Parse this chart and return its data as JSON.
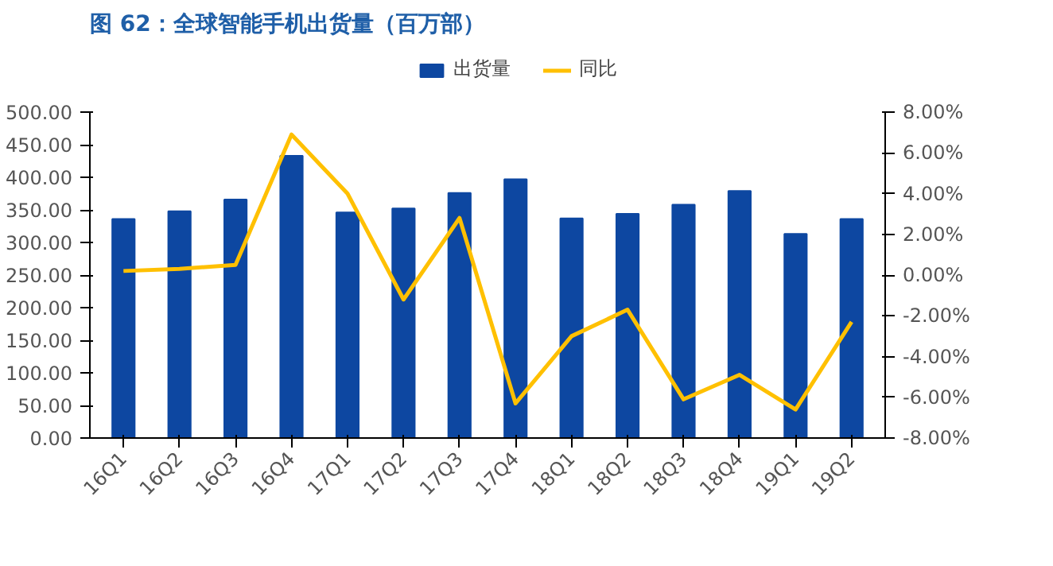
{
  "chart_data": {
    "type": "bar",
    "title": "图 62：全球智能手机出货量（百万部）",
    "categories": [
      "16Q1",
      "16Q2",
      "16Q3",
      "16Q4",
      "17Q1",
      "17Q2",
      "17Q3",
      "17Q4",
      "18Q1",
      "18Q2",
      "18Q3",
      "18Q4",
      "19Q1",
      "19Q2"
    ],
    "series": [
      {
        "name": "出货量",
        "color": "#0d47a1",
        "values": [
          336,
          348,
          366,
          433,
          346,
          352,
          376,
          397,
          337,
          344,
          358,
          379,
          313,
          336
        ]
      },
      {
        "name": "同比",
        "type": "line",
        "axis": "y2",
        "color": "#ffc000",
        "values": [
          0.2,
          0.3,
          0.5,
          6.9,
          4.0,
          -1.2,
          2.8,
          -6.3,
          -3.0,
          -1.7,
          -6.1,
          -4.9,
          -6.6,
          -2.3
        ]
      }
    ],
    "ylim": [
      0,
      500
    ],
    "yticks": [
      {
        "value": 0,
        "label": "0.00"
      },
      {
        "value": 50,
        "label": "50.00"
      },
      {
        "value": 100,
        "label": "100.00"
      },
      {
        "value": 150,
        "label": "150.00"
      },
      {
        "value": 200,
        "label": "200.00"
      },
      {
        "value": 250,
        "label": "250.00"
      },
      {
        "value": 300,
        "label": "300.00"
      },
      {
        "value": 350,
        "label": "350.00"
      },
      {
        "value": 400,
        "label": "400.00"
      },
      {
        "value": 450,
        "label": "450.00"
      },
      {
        "value": 500,
        "label": "500.00"
      }
    ],
    "y2lim": [
      -8,
      8
    ],
    "y2ticks": [
      {
        "value": -8,
        "label": "-8.00%"
      },
      {
        "value": -6,
        "label": "-6.00%"
      },
      {
        "value": -4,
        "label": "-4.00%"
      },
      {
        "value": -2,
        "label": "-2.00%"
      },
      {
        "value": 0,
        "label": "0.00%"
      },
      {
        "value": 2,
        "label": "2.00%"
      },
      {
        "value": 4,
        "label": "4.00%"
      },
      {
        "value": 6,
        "label": "6.00%"
      },
      {
        "value": 8,
        "label": "8.00%"
      }
    ],
    "legend": "top",
    "grid": false,
    "marker": "none",
    "line_style": "solid"
  }
}
